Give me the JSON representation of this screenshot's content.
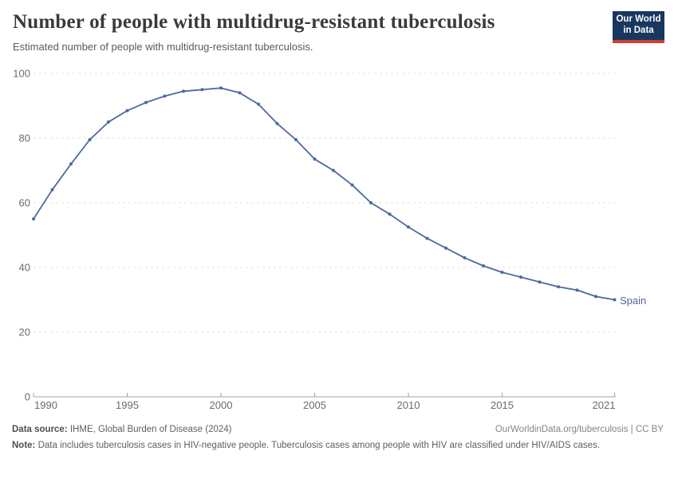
{
  "header": {
    "title": "Number of people with multidrug-resistant tuberculosis",
    "subtitle": "Estimated number of people with multidrug-resistant tuberculosis.",
    "logo": {
      "line1": "Our World",
      "line2": "in Data",
      "bg_color": "#18375f",
      "accent_color": "#d13d33"
    }
  },
  "chart_data": {
    "type": "line",
    "title": "Number of people with multidrug-resistant tuberculosis",
    "subtitle": "Estimated number of people with multidrug-resistant tuberculosis.",
    "x": [
      1990,
      1991,
      1992,
      1993,
      1994,
      1995,
      1996,
      1997,
      1998,
      1999,
      2000,
      2001,
      2002,
      2003,
      2004,
      2005,
      2006,
      2007,
      2008,
      2009,
      2010,
      2011,
      2012,
      2013,
      2014,
      2015,
      2016,
      2017,
      2018,
      2019,
      2020,
      2021
    ],
    "series": [
      {
        "name": "Spain",
        "color": "#4c6a9c",
        "values": [
          55,
          64,
          72,
          79.5,
          85,
          88.5,
          91,
          93,
          94.5,
          95,
          95.5,
          94,
          90.5,
          84.5,
          79.5,
          73.5,
          70,
          65.5,
          60,
          56.5,
          52.5,
          49,
          46,
          43,
          40.5,
          38.5,
          37,
          35.5,
          34,
          33,
          31,
          30
        ]
      }
    ],
    "xlabel": "",
    "ylabel": "",
    "ylim": [
      0,
      100
    ],
    "xlim": [
      1990,
      2021
    ],
    "y_ticks": [
      0,
      20,
      40,
      60,
      80,
      100
    ],
    "x_ticks": [
      1990,
      1995,
      2000,
      2005,
      2010,
      2015,
      2021
    ],
    "grid": "horizontal-dashed",
    "legend_position": "end-of-line-label",
    "marker": "dot",
    "colors": {
      "line": "#4c6a9c",
      "gridline": "#e0e0e0",
      "axis": "#a3a3a3",
      "tick_label": "#6b6b6b"
    }
  },
  "footer": {
    "data_source_label": "Data source:",
    "data_source_text": " IHME, Global Burden of Disease (2024)",
    "rights": "OurWorldinData.org/tuberculosis | CC BY",
    "note_label": "Note:",
    "note_text": " Data includes tuberculosis cases in HIV-negative people. Tuberculosis cases among people with HIV are classified under HIV/AIDS cases."
  }
}
